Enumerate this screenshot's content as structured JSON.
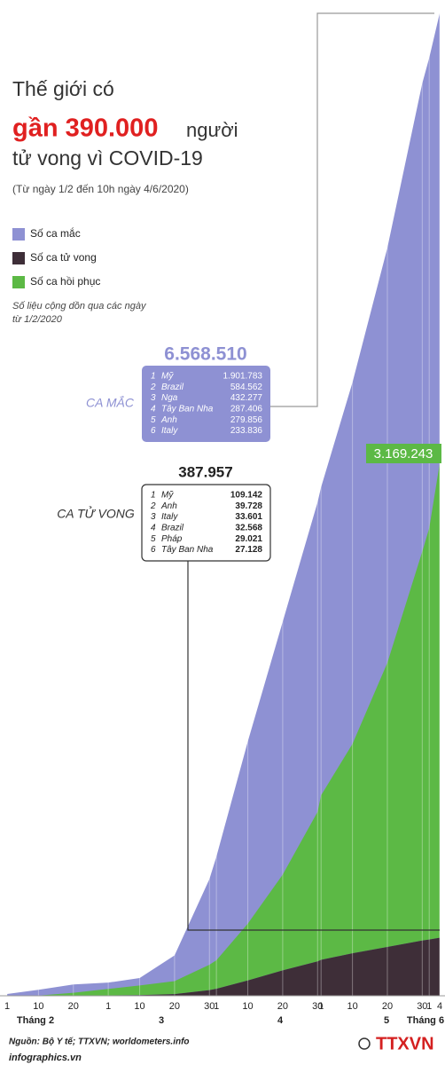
{
  "title": {
    "line1": "Thế giới có",
    "highlight": "gần 390.000",
    "highlight_tail": "người",
    "line3": "tử vong vì COVID-19",
    "subtitle": "(Từ ngày 1/2 đến 10h ngày 4/6/2020)"
  },
  "note": [
    "Số liệu cộng dồn qua các ngày",
    "từ 1/2/2020"
  ],
  "chart_data": {
    "type": "area",
    "x": [
      "1/2",
      "10/2",
      "20/2",
      "1/3",
      "10/3",
      "20/3",
      "30/3",
      "1/4",
      "10/4",
      "20/4",
      "30/4",
      "1/5",
      "10/5",
      "20/5",
      "30/5",
      "1/6",
      "4/6"
    ],
    "series": [
      {
        "name": "Số ca mắc",
        "color": "#8e91d3",
        "values": [
          12000,
          40000,
          76000,
          88000,
          119000,
          270000,
          780000,
          930000,
          1700000,
          2500000,
          3300000,
          3400000,
          4100000,
          5000000,
          6100000,
          6270000,
          6568510
        ],
        "value_labels": [
          null,
          null,
          null,
          null,
          null,
          null,
          null,
          null,
          null,
          null,
          null,
          null,
          null,
          null,
          null,
          null,
          "6.568.510"
        ]
      },
      {
        "name": "Số ca tử vong",
        "color": "#3e2e38",
        "values": [
          300,
          900,
          2200,
          3000,
          4200,
          11000,
          38000,
          47000,
          102000,
          170000,
          230000,
          240000,
          284000,
          326000,
          369000,
          376000,
          387957
        ],
        "value_labels": [
          null,
          null,
          null,
          null,
          null,
          null,
          null,
          null,
          null,
          null,
          null,
          null,
          null,
          null,
          null,
          null,
          "387.957"
        ]
      },
      {
        "name": "Số ca hồi phục",
        "color": "#5cb945",
        "stack_on": 1,
        "values": [
          300,
          600,
          18000,
          43000,
          65000,
          87000,
          170000,
          190000,
          380000,
          640000,
          1000000,
          1100000,
          1400000,
          1900000,
          2600000,
          2750000,
          3169243
        ],
        "value_labels": [
          null,
          null,
          null,
          null,
          null,
          null,
          null,
          null,
          null,
          null,
          null,
          null,
          null,
          null,
          null,
          null,
          "3.169.243"
        ]
      }
    ],
    "xticks": [
      {
        "value": "1/2",
        "label": "1"
      },
      {
        "value": "10/2",
        "label": "10"
      },
      {
        "value": "20/2",
        "label": "20"
      },
      {
        "value": "1/3",
        "label": "1"
      },
      {
        "value": "10/3",
        "label": "10"
      },
      {
        "value": "20/3",
        "label": "20"
      },
      {
        "value": "30/3",
        "label": "30"
      },
      {
        "value": "1/4",
        "label": "1"
      },
      {
        "value": "10/4",
        "label": "10"
      },
      {
        "value": "20/4",
        "label": "20"
      },
      {
        "value": "30/4",
        "label": "30"
      },
      {
        "value": "1/5",
        "label": "1"
      },
      {
        "value": "10/5",
        "label": "10"
      },
      {
        "value": "20/5",
        "label": "20"
      },
      {
        "value": "30/5",
        "label": "30"
      },
      {
        "value": "1/6",
        "label": "1"
      },
      {
        "value": "4/6",
        "label": "4"
      }
    ],
    "month_labels": [
      "Tháng 2",
      "3",
      "4",
      "5",
      "Tháng 6"
    ],
    "cases_box": {
      "label": "CA MẮC",
      "rows": [
        [
          "1",
          "Mỹ",
          "1.901.783"
        ],
        [
          "2",
          "Brazil",
          "584.562"
        ],
        [
          "3",
          "Nga",
          "432.277"
        ],
        [
          "4",
          "Tây Ban Nha",
          "287.406"
        ],
        [
          "5",
          "Anh",
          "279.856"
        ],
        [
          "6",
          "Italy",
          "233.836"
        ]
      ]
    },
    "deaths_box": {
      "label": "CA TỬ VONG",
      "rows": [
        [
          "1",
          "Mỹ",
          "109.142"
        ],
        [
          "2",
          "Anh",
          "39.728"
        ],
        [
          "3",
          "Italy",
          "33.601"
        ],
        [
          "4",
          "Brazil",
          "32.568"
        ],
        [
          "5",
          "Pháp",
          "29.021"
        ],
        [
          "6",
          "Tây Ban Nha",
          "27.128"
        ]
      ]
    }
  },
  "footer": {
    "source": "Nguồn: Bộ Y tế; TTXVN; worldometers.info",
    "site": "infographics.vn",
    "logo": "TTXVN"
  }
}
